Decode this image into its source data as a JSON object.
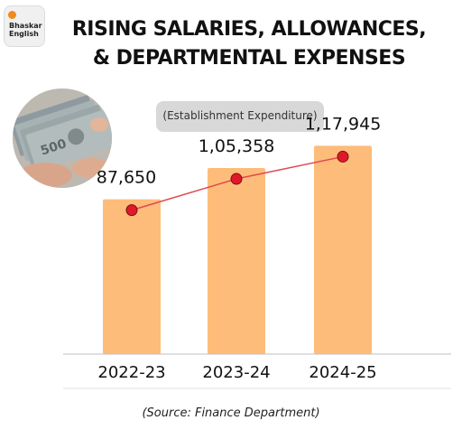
{
  "brand": {
    "line1": "Bhaskar",
    "line2": "English"
  },
  "title": {
    "line1": "RISING SALARIES, ALLOWANCES,",
    "line2": "& DEPARTMENTAL EXPENSES"
  },
  "subtitle": "(Establishment Expenditure)",
  "source": "(Source: Finance Department)",
  "colors": {
    "bar": "#fdbc7a",
    "line": "#e0484f",
    "marker": "#e0192a",
    "accent": "#f08a1c"
  },
  "chart_data": {
    "type": "bar",
    "categories": [
      "2022-23",
      "2023-24",
      "2024-25"
    ],
    "values": [
      87650,
      105358,
      117945
    ],
    "value_labels": [
      "87,650",
      "1,05,358",
      "1,17,945"
    ],
    "overlay": "line with markers connecting bar tops",
    "title": "(Establishment Expenditure)",
    "ylim": [
      0,
      133000
    ],
    "grid": false,
    "legend": "none"
  }
}
